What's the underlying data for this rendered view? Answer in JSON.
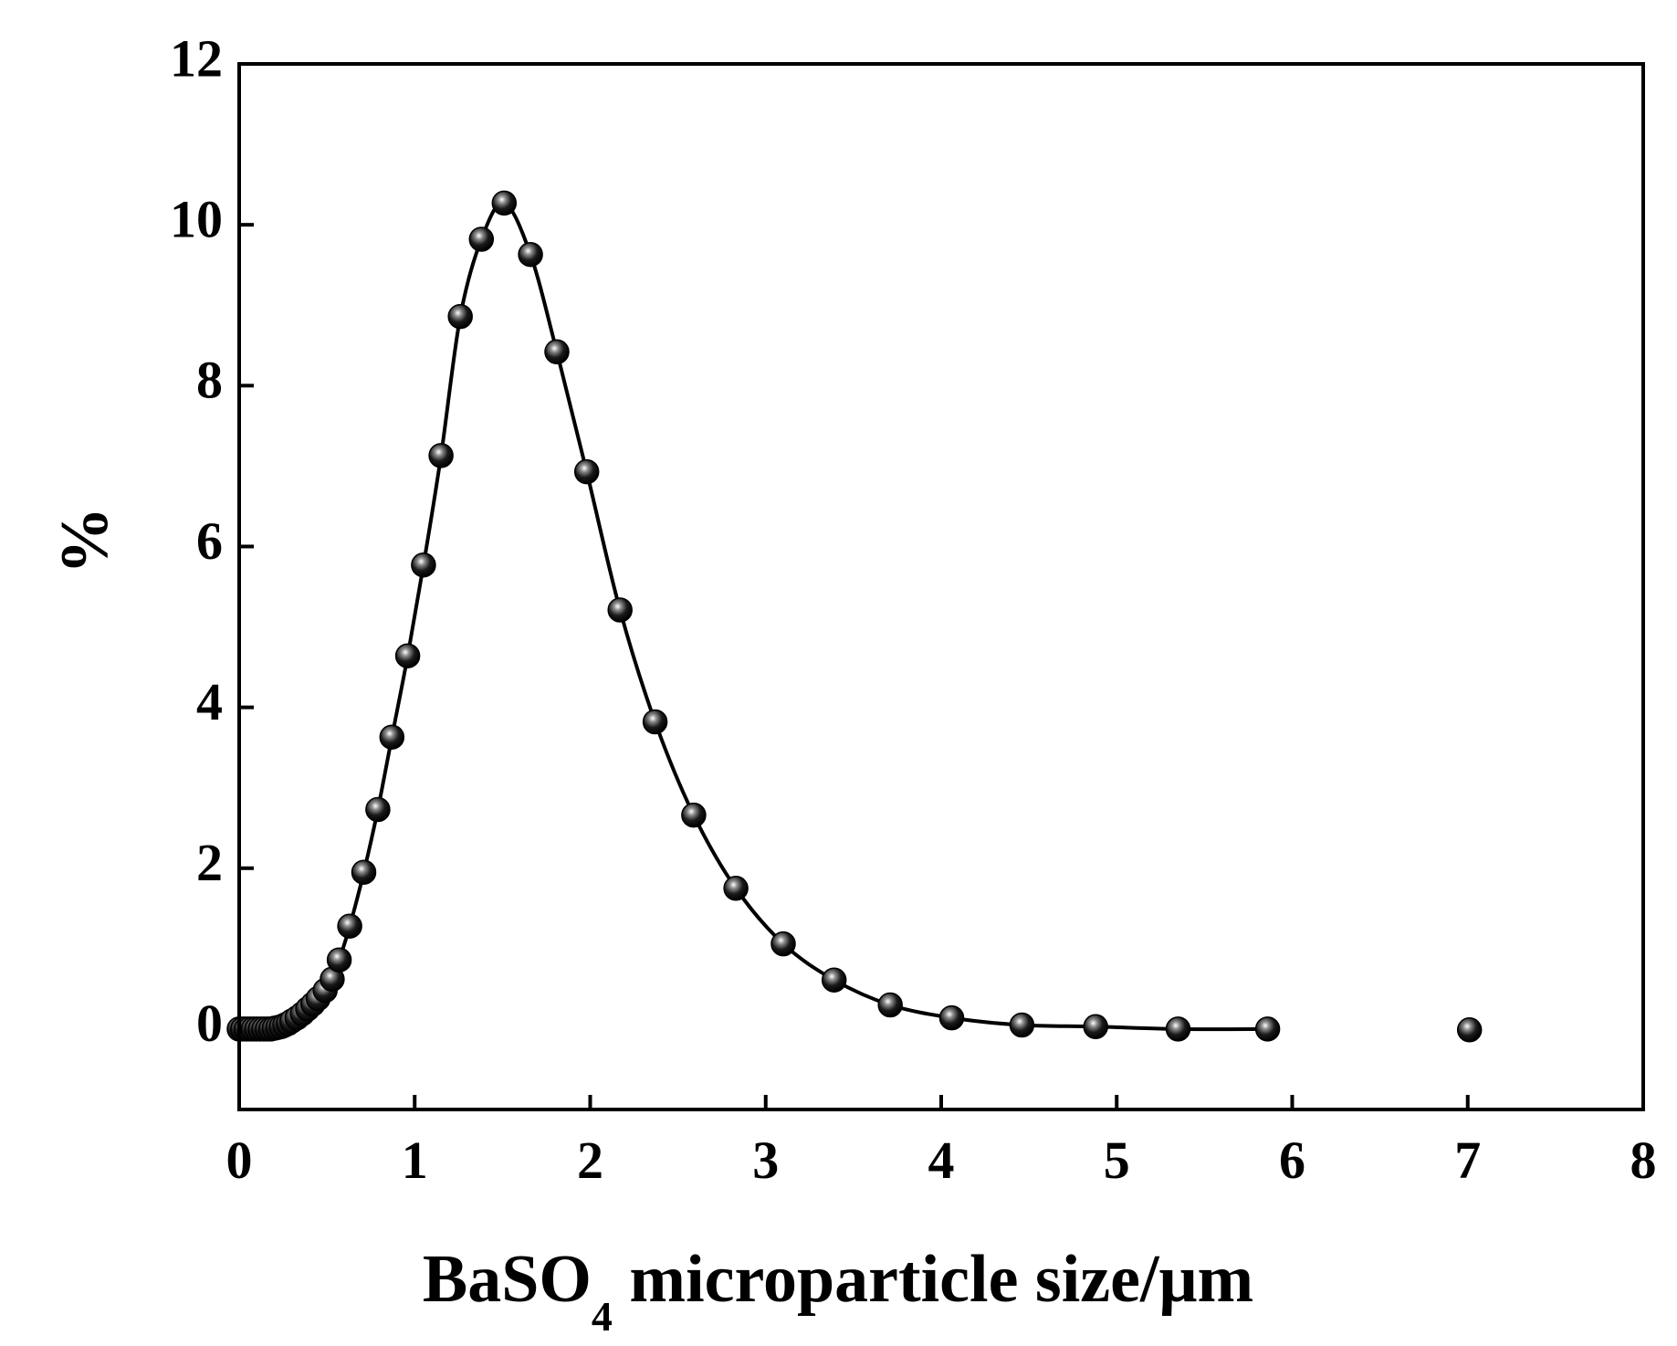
{
  "chart_data": {
    "type": "line",
    "title": "",
    "xlabel": {
      "main": "BaSO",
      "subscript": "4",
      "rest": " microparticle size/μm"
    },
    "ylabel": "%",
    "xlim": [
      0,
      8
    ],
    "ylim": [
      -1,
      12
    ],
    "xticks": [
      0,
      1,
      2,
      3,
      4,
      5,
      6,
      7,
      8
    ],
    "yticks": [
      0,
      2,
      4,
      6,
      8,
      10,
      12
    ],
    "grid": false,
    "legend": "none",
    "colors": {
      "line": "#000000",
      "marker": "#0a0a0a",
      "marker_highlight": "#ffffff"
    },
    "series": [
      {
        "connected": [
          [
            0.0,
            0.0
          ],
          [
            0.02,
            0.0
          ],
          [
            0.04,
            0.0
          ],
          [
            0.06,
            0.0
          ],
          [
            0.08,
            0.0
          ],
          [
            0.1,
            0.0
          ],
          [
            0.12,
            0.0
          ],
          [
            0.14,
            0.0
          ],
          [
            0.16,
            0.0
          ],
          [
            0.18,
            0.0
          ],
          [
            0.2,
            0.01
          ],
          [
            0.22,
            0.02
          ],
          [
            0.24,
            0.03
          ],
          [
            0.26,
            0.05
          ],
          [
            0.28,
            0.07
          ],
          [
            0.3,
            0.1
          ],
          [
            0.33,
            0.14
          ],
          [
            0.36,
            0.19
          ],
          [
            0.39,
            0.25
          ],
          [
            0.42,
            0.31
          ],
          [
            0.45,
            0.38
          ],
          [
            0.49,
            0.48
          ],
          [
            0.53,
            0.62
          ],
          [
            0.57,
            0.86
          ],
          [
            0.63,
            1.28
          ],
          [
            0.71,
            1.95
          ],
          [
            0.79,
            2.73
          ],
          [
            0.87,
            3.63
          ],
          [
            0.96,
            4.64
          ],
          [
            1.05,
            5.77
          ],
          [
            1.15,
            7.13
          ],
          [
            1.26,
            8.86
          ],
          [
            1.38,
            9.82
          ],
          [
            1.51,
            10.27
          ],
          [
            1.66,
            9.63
          ],
          [
            1.81,
            8.42
          ],
          [
            1.98,
            6.93
          ],
          [
            2.17,
            5.21
          ],
          [
            2.37,
            3.82
          ],
          [
            2.59,
            2.66
          ],
          [
            2.83,
            1.75
          ],
          [
            3.1,
            1.06
          ],
          [
            3.39,
            0.61
          ],
          [
            3.71,
            0.3
          ],
          [
            4.06,
            0.14
          ],
          [
            4.46,
            0.05
          ],
          [
            4.88,
            0.03
          ],
          [
            5.35,
            0.0
          ],
          [
            5.86,
            0.0
          ]
        ],
        "isolated": [
          [
            7.01,
            -0.01
          ]
        ]
      }
    ]
  }
}
